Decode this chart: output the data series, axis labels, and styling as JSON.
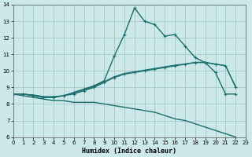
{
  "xlabel": "Humidex (Indice chaleur)",
  "background_color": "#cce8e8",
  "grid_color": "#aacccc",
  "line_color": "#1a6e6e",
  "hours": [
    0,
    1,
    2,
    3,
    4,
    5,
    6,
    7,
    8,
    9,
    10,
    11,
    12,
    13,
    14,
    15,
    16,
    17,
    18,
    19,
    20,
    21,
    22,
    23
  ],
  "line_max": [
    8.6,
    8.6,
    8.5,
    8.4,
    8.4,
    8.5,
    8.7,
    8.9,
    9.1,
    9.4,
    10.9,
    12.2,
    13.8,
    13.0,
    12.8,
    12.1,
    12.2,
    11.5,
    10.8,
    10.5,
    9.9,
    8.6,
    8.6,
    null
  ],
  "line_mean": [
    8.6,
    8.6,
    8.5,
    8.4,
    8.4,
    8.5,
    8.6,
    8.8,
    9.0,
    9.3,
    9.6,
    9.8,
    9.9,
    10.0,
    10.1,
    10.2,
    10.3,
    10.4,
    10.5,
    10.5,
    10.4,
    10.3,
    9.0,
    null
  ],
  "line_upper": [
    8.6,
    8.6,
    8.55,
    8.45,
    8.45,
    8.5,
    8.65,
    8.85,
    9.05,
    9.35,
    9.65,
    9.85,
    9.95,
    10.05,
    10.15,
    10.25,
    10.35,
    10.42,
    10.52,
    10.52,
    10.42,
    10.32,
    9.05,
    null
  ],
  "line_min": [
    8.6,
    8.5,
    8.4,
    8.3,
    8.2,
    8.2,
    8.1,
    8.1,
    8.1,
    8.0,
    7.9,
    7.8,
    7.7,
    7.6,
    7.5,
    7.3,
    7.1,
    7.0,
    6.8,
    6.6,
    6.4,
    6.2,
    6.0,
    null
  ],
  "xlim": [
    0,
    23
  ],
  "ylim": [
    6,
    14
  ],
  "yticks": [
    6,
    7,
    8,
    9,
    10,
    11,
    12,
    13,
    14
  ],
  "xticks": [
    0,
    1,
    2,
    3,
    4,
    5,
    6,
    7,
    8,
    9,
    10,
    11,
    12,
    13,
    14,
    15,
    16,
    17,
    18,
    19,
    20,
    21,
    22,
    23
  ]
}
